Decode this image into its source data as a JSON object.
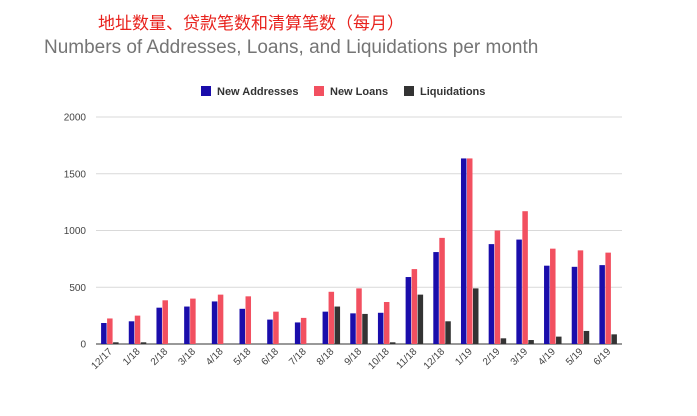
{
  "chinese_title": "地址数量、贷款笔数和清算笔数（每月）",
  "chart_data": {
    "type": "bar",
    "title": "Numbers of Addresses, Loans, and Liquidations per month",
    "xlabel": "",
    "ylabel": "",
    "ylim": [
      0,
      2000
    ],
    "yticks": [
      0,
      500,
      1000,
      1500,
      2000
    ],
    "grid": true,
    "legend_position": "top",
    "categories": [
      "12/17",
      "1/18",
      "2/18",
      "3/18",
      "4/18",
      "5/18",
      "6/18",
      "7/18",
      "8/18",
      "9/18",
      "10/18",
      "11/18",
      "12/18",
      "1/19",
      "2/19",
      "3/19",
      "4/19",
      "5/19",
      "6/19"
    ],
    "series": [
      {
        "name": "New Addresses",
        "color": "#1a0dab",
        "values": [
          185,
          200,
          320,
          330,
          375,
          310,
          215,
          190,
          285,
          270,
          275,
          590,
          810,
          1635,
          880,
          920,
          690,
          680,
          695
        ]
      },
      {
        "name": "New Loans",
        "color": "#f25060",
        "values": [
          225,
          250,
          385,
          400,
          435,
          420,
          285,
          230,
          460,
          490,
          370,
          660,
          935,
          1635,
          1000,
          1170,
          840,
          825,
          805
        ]
      },
      {
        "name": "Liquidations",
        "color": "#333333",
        "values": [
          15,
          15,
          0,
          0,
          0,
          0,
          0,
          0,
          330,
          265,
          15,
          435,
          200,
          490,
          50,
          35,
          65,
          115,
          85
        ]
      }
    ]
  }
}
